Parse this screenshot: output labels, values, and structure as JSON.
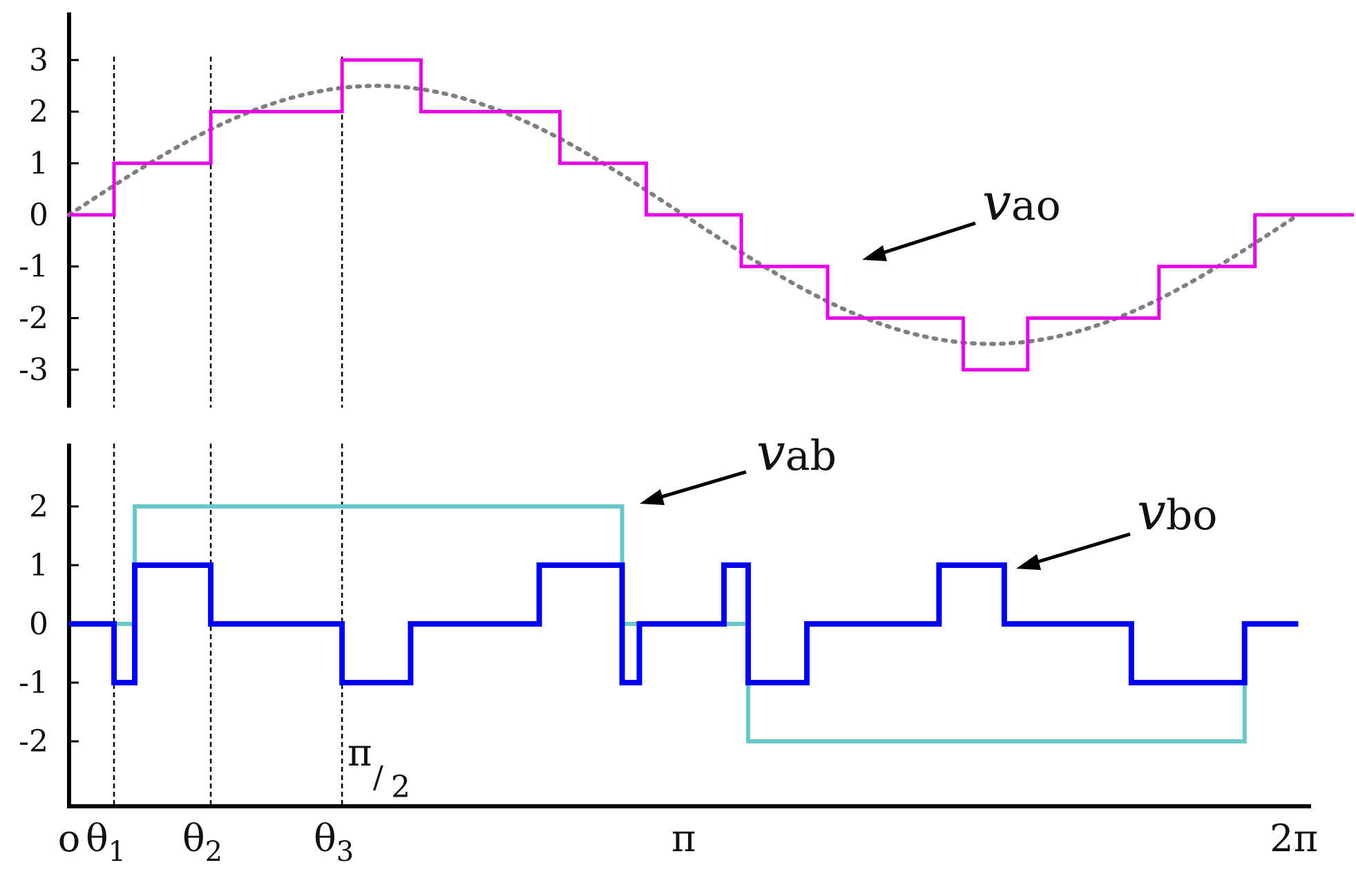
{
  "chart_data": [
    {
      "type": "line",
      "panel": "top",
      "xlabel": "",
      "ylabel": "",
      "x_domain": [
        0,
        6.2832
      ],
      "ylim": [
        -3,
        3
      ],
      "yticks": [
        {
          "v": 3,
          "label": "3"
        },
        {
          "v": 2,
          "label": "2"
        },
        {
          "v": 1,
          "label": "1"
        },
        {
          "v": 0,
          "label": "0"
        },
        {
          "v": -1,
          "label": "-1"
        },
        {
          "v": -2,
          "label": "-2"
        },
        {
          "v": -3,
          "label": "-3"
        }
      ],
      "guide_lines_x": [
        0.2297,
        0.7242,
        1.3954
      ],
      "series": [
        {
          "name": "vao",
          "label_main": "v",
          "label_sub": "ao",
          "color": "#e600e6",
          "style": "step",
          "points": [
            [
              0,
              0
            ],
            [
              0.2297,
              0
            ],
            [
              0.2297,
              1
            ],
            [
              0.7242,
              1
            ],
            [
              0.7242,
              2
            ],
            [
              1.3954,
              2
            ],
            [
              1.3954,
              3
            ],
            [
              1.7986,
              3
            ],
            [
              1.7986,
              2
            ],
            [
              2.5092,
              2
            ],
            [
              2.5092,
              1
            ],
            [
              2.9505,
              1
            ],
            [
              2.9505,
              0
            ],
            [
              3.4362,
              0
            ],
            [
              3.4362,
              -1
            ],
            [
              3.8775,
              -1
            ],
            [
              3.8775,
              -2
            ],
            [
              4.5705,
              -2
            ],
            [
              4.5705,
              -3
            ],
            [
              4.9003,
              -3
            ],
            [
              4.9003,
              -2
            ],
            [
              5.5715,
              -2
            ],
            [
              5.5715,
              -1
            ],
            [
              6.0618,
              -1
            ],
            [
              6.0618,
              0
            ],
            [
              6.6,
              0
            ]
          ]
        },
        {
          "name": "",
          "color": "#7f7f7f",
          "style": "dotted",
          "function": "2.5*sin(x)",
          "x_range": [
            0,
            6.2832
          ]
        }
      ]
    },
    {
      "type": "line",
      "panel": "bottom",
      "xlabel": "",
      "ylabel": "",
      "x_domain": [
        0,
        6.2832
      ],
      "ylim": [
        -2,
        2
      ],
      "yticks": [
        {
          "v": 2,
          "label": "2"
        },
        {
          "v": 1,
          "label": "1"
        },
        {
          "v": 0,
          "label": "0"
        },
        {
          "v": -1,
          "label": "-1"
        },
        {
          "v": -2,
          "label": "-2"
        }
      ],
      "xticks": [
        {
          "v": 0,
          "label": "o",
          "sub": ""
        },
        {
          "v": 0.2297,
          "label": "θ",
          "sub": "1"
        },
        {
          "v": 0.7242,
          "label": "θ",
          "sub": "2"
        },
        {
          "v": 1.3954,
          "label": "θ",
          "sub": "3"
        },
        {
          "v": 3.1416,
          "label": "π",
          "sub": ""
        },
        {
          "v": 6.2832,
          "label": "2π",
          "sub": ""
        }
      ],
      "annotation": {
        "main": "π",
        "sub": "2"
      },
      "guide_lines_x": [
        0.2297,
        0.7242,
        1.3954
      ],
      "series": [
        {
          "name": "vab",
          "label_main": "v",
          "label_sub": "ab",
          "color": "#66c8c8",
          "style": "step",
          "points": [
            [
              0,
              0
            ],
            [
              0.3357,
              0
            ],
            [
              0.3357,
              2
            ],
            [
              2.8269,
              2
            ],
            [
              2.8269,
              0
            ],
            [
              3.4715,
              0
            ],
            [
              3.4715,
              -2
            ],
            [
              6.0089,
              -2
            ],
            [
              6.0089,
              0
            ],
            [
              6.2832,
              0
            ]
          ]
        },
        {
          "name": "vbo",
          "label_main": "v",
          "label_sub": "bo",
          "color": "#0000ee",
          "style": "step",
          "points": [
            [
              0,
              0
            ],
            [
              0.2297,
              0
            ],
            [
              0.2297,
              -1
            ],
            [
              0.3357,
              -1
            ],
            [
              0.3357,
              1
            ],
            [
              0.7242,
              1
            ],
            [
              0.7242,
              0
            ],
            [
              1.3954,
              0
            ],
            [
              1.3954,
              -1
            ],
            [
              1.7456,
              -1
            ],
            [
              1.7456,
              0
            ],
            [
              2.4032,
              0
            ],
            [
              2.4032,
              1
            ],
            [
              2.8269,
              1
            ],
            [
              2.8269,
              -1
            ],
            [
              2.9152,
              -1
            ],
            [
              2.9152,
              0
            ],
            [
              3.3479,
              0
            ],
            [
              3.3479,
              1
            ],
            [
              3.4715,
              1
            ],
            [
              3.4715,
              -1
            ],
            [
              3.7716,
              -1
            ],
            [
              3.7716,
              0
            ],
            [
              4.4469,
              0
            ],
            [
              4.4469,
              1
            ],
            [
              4.7804,
              1
            ],
            [
              4.7804,
              0
            ],
            [
              5.4301,
              0
            ],
            [
              5.4301,
              -1
            ],
            [
              6.0089,
              -1
            ],
            [
              6.0089,
              0
            ],
            [
              6.2832,
              0
            ]
          ]
        }
      ]
    }
  ]
}
